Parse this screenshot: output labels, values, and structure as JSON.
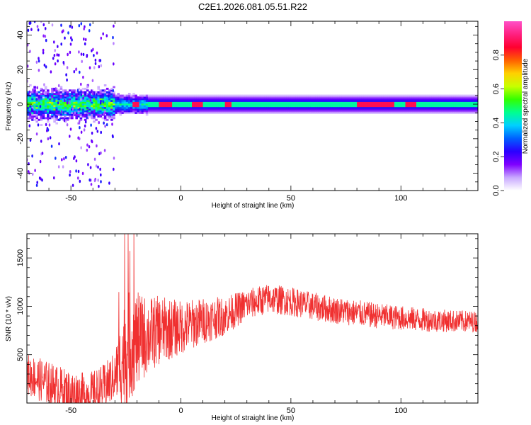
{
  "title": "C2E1.2026.081.05.51.R22",
  "chart_data": [
    {
      "type": "heatmap",
      "name": "spectrogram",
      "xlabel": "Height of straight line (km)",
      "ylabel": "Frequency (Hz)",
      "xlim": [
        -70,
        135
      ],
      "ylim": [
        -50,
        48
      ],
      "xticks": [
        -50,
        0,
        50,
        100
      ],
      "yticks": [
        -40,
        -20,
        0,
        20,
        40
      ],
      "colorbar": {
        "label": "Normalized spectral amplitude",
        "range": [
          0.0,
          1.0
        ],
        "ticks": [
          "0.0",
          "0.2",
          "0.4",
          "0.6",
          "0.8"
        ],
        "colors": [
          "#ffffff",
          "#c9a8ff",
          "#7f00ff",
          "#2a00ff",
          "#0060ff",
          "#00d0ff",
          "#00ff90",
          "#33ff00",
          "#c8ff00",
          "#ffd000",
          "#ff6000",
          "#ff0030",
          "#ff2080",
          "#ff50c8"
        ]
      },
      "band_center_hz": 0,
      "peak_regions_km": [
        [
          -22,
          -20
        ],
        [
          -10,
          -5
        ],
        [
          5,
          9
        ],
        [
          20,
          22
        ],
        [
          80,
          96
        ],
        [
          102,
          106
        ]
      ]
    },
    {
      "type": "line",
      "name": "snr",
      "xlabel": "Height of straight line (km)",
      "ylabel": "SNR (10 * v/v)",
      "xlim": [
        -70,
        135
      ],
      "ylim": [
        0,
        1750
      ],
      "xticks": [
        -50,
        0,
        50,
        100
      ],
      "yticks": [
        500,
        1000,
        1500
      ],
      "color": "#f03030",
      "trend": {
        "x": [
          -70,
          -60,
          -50,
          -45,
          -40,
          -35,
          -30,
          -25,
          -20,
          -10,
          0,
          10,
          20,
          30,
          40,
          50,
          60,
          70,
          80,
          90,
          100,
          110,
          120,
          135
        ],
        "y": [
          300,
          200,
          100,
          80,
          90,
          160,
          280,
          550,
          650,
          750,
          780,
          850,
          900,
          1020,
          1080,
          1050,
          1000,
          960,
          930,
          900,
          880,
          860,
          850,
          840
        ]
      },
      "spread": {
        "x": [
          -70,
          -30,
          -25,
          -15,
          0,
          30,
          135
        ],
        "y": [
          220,
          250,
          600,
          400,
          280,
          160,
          110
        ]
      }
    }
  ]
}
